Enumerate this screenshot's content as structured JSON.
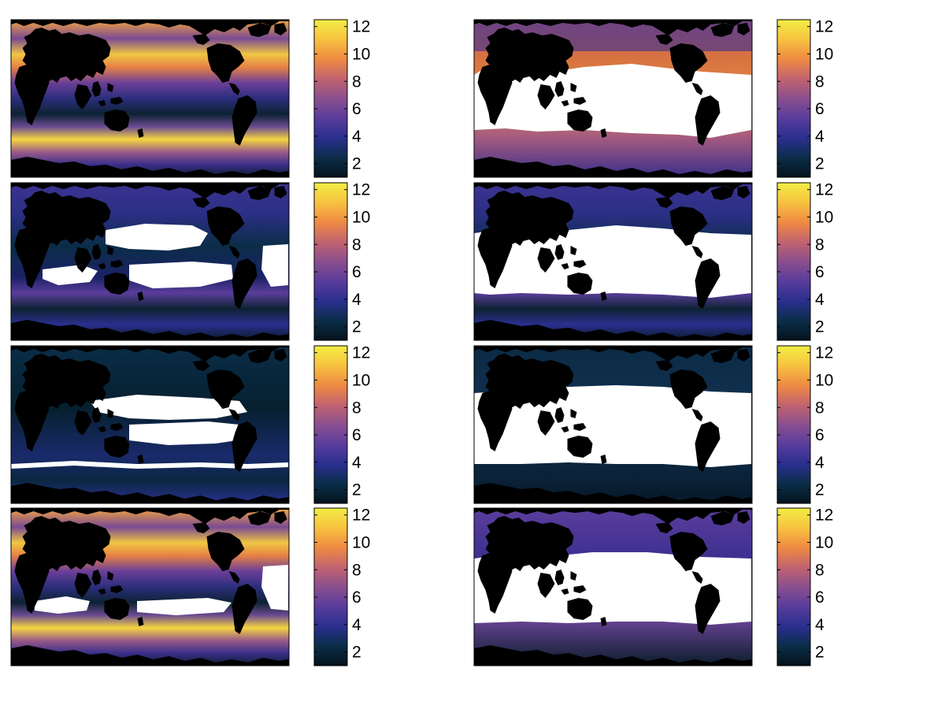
{
  "figure": {
    "grid": {
      "rows": 4,
      "cols": 2
    },
    "background": "#ffffff",
    "land_color": "#000000",
    "masked_color": "#ffffff"
  },
  "colormap": {
    "name": "thermal-like",
    "stops": [
      "#04121c",
      "#0a2d47",
      "#2a2f8f",
      "#5b3d9c",
      "#8a4f8e",
      "#c06270",
      "#ef8a43",
      "#f8c440",
      "#f1ee45"
    ]
  },
  "chart_data": [
    {
      "type": "heatmap",
      "panel": "row1-left",
      "colorbar": {
        "range": [
          1,
          12.5
        ],
        "ticks": [
          2,
          4,
          6,
          8,
          10,
          12
        ],
        "tick_labels": [
          "2",
          "4",
          "6",
          "8",
          "10",
          "12"
        ]
      },
      "masked_ocean": "none"
    },
    {
      "type": "heatmap",
      "panel": "row1-right",
      "colorbar": {
        "range": [
          1,
          12.5
        ],
        "ticks": [
          2,
          4,
          6,
          8,
          10,
          12
        ],
        "tick_labels": [
          "2",
          "4",
          "6",
          "8",
          "10",
          "12"
        ]
      },
      "masked_ocean": "tropics-and-subtropics"
    },
    {
      "type": "heatmap",
      "panel": "row2-left",
      "colorbar": {
        "range": [
          1,
          12.5
        ],
        "ticks": [
          2,
          4,
          6,
          8,
          10,
          12
        ],
        "tick_labels": [
          "2",
          "4",
          "6",
          "8",
          "10",
          "12"
        ]
      },
      "masked_ocean": "subtropical gyres"
    },
    {
      "type": "heatmap",
      "panel": "row2-right",
      "colorbar": {
        "range": [
          1,
          12.5
        ],
        "ticks": [
          2,
          4,
          6,
          8,
          10,
          12
        ],
        "tick_labels": [
          "2",
          "4",
          "6",
          "8",
          "10",
          "12"
        ]
      },
      "masked_ocean": "tropics-and-subtropics"
    },
    {
      "type": "heatmap",
      "panel": "row3-left",
      "colorbar": {
        "range": [
          1,
          12.5
        ],
        "ticks": [
          2,
          4,
          6,
          8,
          10,
          12
        ],
        "tick_labels": [
          "2",
          "4",
          "6",
          "8",
          "10",
          "12"
        ]
      },
      "masked_ocean": "subtropical gyres"
    },
    {
      "type": "heatmap",
      "panel": "row3-right",
      "colorbar": {
        "range": [
          1,
          12.5
        ],
        "ticks": [
          2,
          4,
          6,
          8,
          10,
          12
        ],
        "tick_labels": [
          "2",
          "4",
          "6",
          "8",
          "10",
          "12"
        ]
      },
      "masked_ocean": "most of ocean"
    },
    {
      "type": "heatmap",
      "panel": "row4-left",
      "colorbar": {
        "range": [
          1,
          12.5
        ],
        "ticks": [
          2,
          4,
          6,
          8,
          10,
          12
        ],
        "tick_labels": [
          "2",
          "4",
          "6",
          "8",
          "10",
          "12"
        ]
      },
      "masked_ocean": "tropical bands"
    },
    {
      "type": "heatmap",
      "panel": "row4-right",
      "colorbar": {
        "range": [
          1,
          12.5
        ],
        "ticks": [
          2,
          4,
          6,
          8,
          10,
          12
        ],
        "tick_labels": [
          "2",
          "4",
          "6",
          "8",
          "10",
          "12"
        ]
      },
      "masked_ocean": "tropics-and-subtropics"
    }
  ]
}
